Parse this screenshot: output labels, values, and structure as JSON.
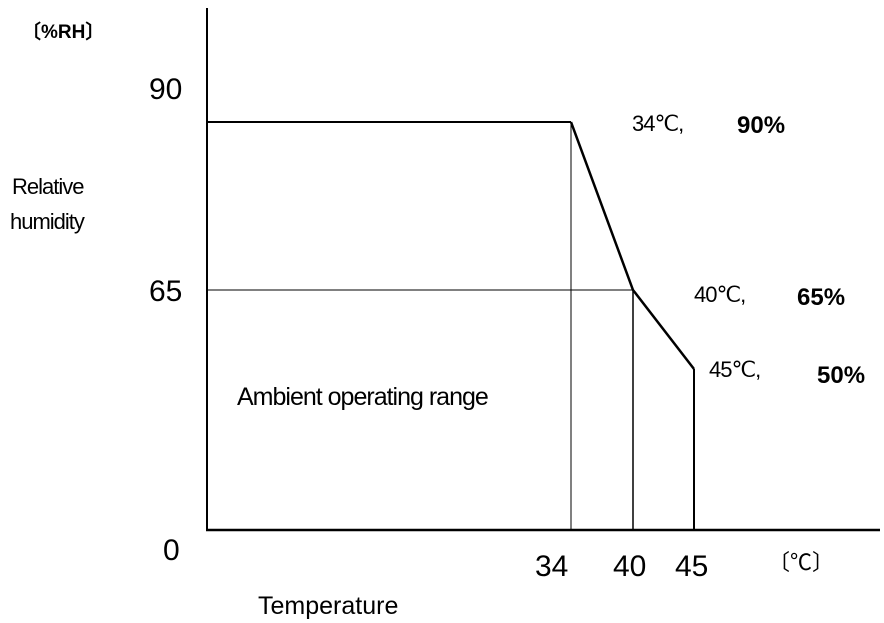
{
  "chart_data": {
    "type": "line",
    "y_unit": "〔%RH〕",
    "x_unit": "〔℃〕",
    "ylabel_line1": "Relative",
    "ylabel_line2": "humidity",
    "xlabel": "Temperature",
    "region_label": "Ambient operating range",
    "y_ticks": [
      "90",
      "65",
      "0"
    ],
    "x_ticks": [
      "34",
      "40",
      "45"
    ],
    "series": [
      {
        "points": [
          {
            "x": 34,
            "y": 90,
            "temp_label": "34℃,",
            "rh_label": "90%"
          },
          {
            "x": 40,
            "y": 65,
            "temp_label": "40℃,",
            "rh_label": "65%"
          },
          {
            "x": 45,
            "y": 50,
            "temp_label": "45℃,",
            "rh_label": "50%"
          }
        ]
      }
    ],
    "boundary_start": {
      "x": 0,
      "y": 90
    },
    "grid": false
  }
}
